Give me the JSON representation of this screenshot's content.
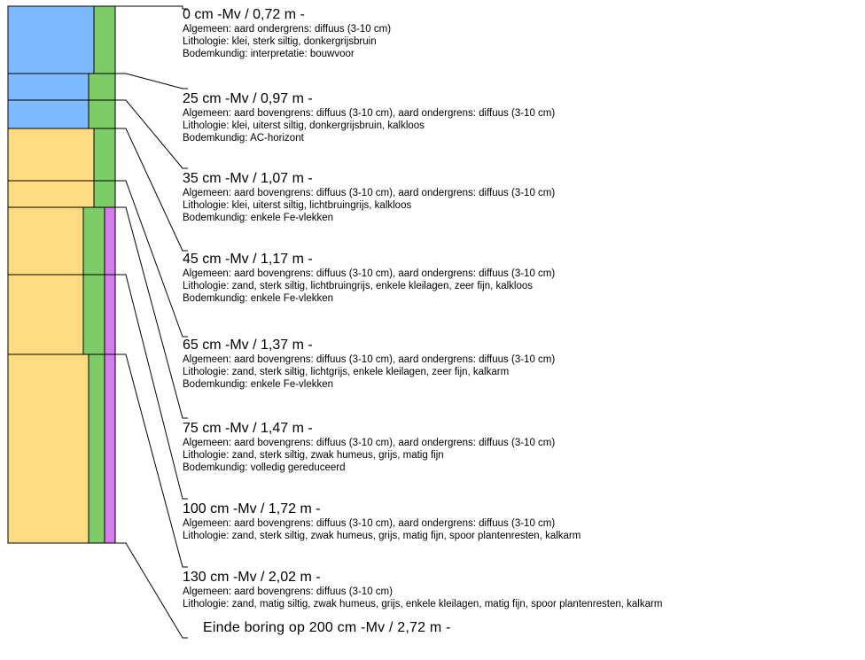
{
  "colors": {
    "clay": "#7fb9ff",
    "sand": "#ffdc82",
    "green": "#7dcc67",
    "pink": "#d77bf1",
    "stroke": "#000000"
  },
  "layers": [
    {
      "title": "0 cm -Mv / 0,72 m -",
      "lines": [
        "Algemeen: aard ondergrens: diffuus (3-10 cm)",
        "Lithologie: klei, sterk siltig, donkergrijsbruin",
        "Bodemkundig: interpretatie: bouwvoor"
      ]
    },
    {
      "title": "25 cm -Mv / 0,97 m -",
      "lines": [
        "Algemeen: aard bovengrens: diffuus (3-10 cm), aard ondergrens: diffuus (3-10 cm)",
        "Lithologie: klei, uiterst siltig, donkergrijsbruin, kalkloos",
        "Bodemkundig: AC-horizont"
      ]
    },
    {
      "title": "35 cm -Mv / 1,07 m -",
      "lines": [
        "Algemeen: aard bovengrens: diffuus (3-10 cm), aard ondergrens: diffuus (3-10 cm)",
        "Lithologie: klei, uiterst siltig, lichtbruingrijs, kalkloos",
        "Bodemkundig: enkele Fe-vlekken"
      ]
    },
    {
      "title": "45 cm -Mv / 1,17 m -",
      "lines": [
        "Algemeen: aard bovengrens: diffuus (3-10 cm), aard ondergrens: diffuus (3-10 cm)",
        "Lithologie: zand, sterk siltig, lichtbruingrijs, enkele kleilagen, zeer fijn, kalkloos",
        "Bodemkundig: enkele Fe-vlekken"
      ]
    },
    {
      "title": "65 cm -Mv / 1,37 m -",
      "lines": [
        "Algemeen: aard bovengrens: diffuus (3-10 cm), aard ondergrens: diffuus (3-10 cm)",
        "Lithologie: zand, sterk siltig, lichtgrijs, enkele kleilagen, zeer fijn, kalkarm",
        "Bodemkundig: enkele Fe-vlekken"
      ]
    },
    {
      "title": "75 cm -Mv / 1,47 m -",
      "lines": [
        "Algemeen: aard bovengrens: diffuus (3-10 cm), aard ondergrens: diffuus (3-10 cm)",
        "Lithologie: zand, sterk siltig, zwak humeus, grijs, matig fijn",
        "Bodemkundig: volledig gereduceerd"
      ]
    },
    {
      "title": "100 cm -Mv / 1,72 m -",
      "lines": [
        "Algemeen: aard bovengrens: diffuus (3-10 cm), aard ondergrens: diffuus (3-10 cm)",
        "Lithologie: zand, sterk siltig, zwak humeus, grijs, matig fijn, spoor plantenresten, kalkarm"
      ]
    },
    {
      "title": "130 cm -Mv / 2,02 m -",
      "lines": [
        "Algemeen: aard bovengrens: diffuus (3-10 cm)",
        "Lithologie: zand, matig siltig, zwak humeus, grijs, enkele kleilagen, matig fijn, spoor plantenresten, kalkarm"
      ]
    }
  ],
  "end_label": "Einde boring op 200 cm -Mv / 2,72 m -"
}
